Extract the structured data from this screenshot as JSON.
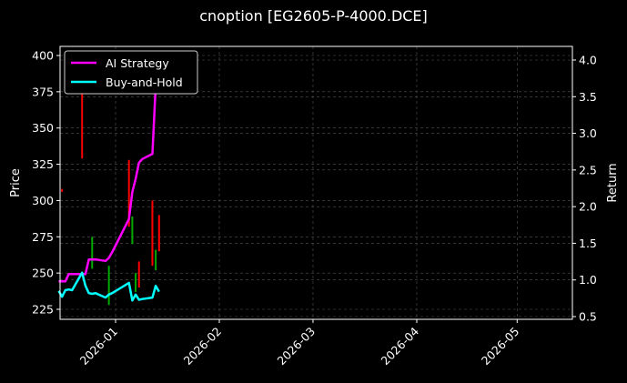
{
  "title": "cnoption [EG2605-P-4000.DCE]",
  "chart_data": {
    "type": "line",
    "title": "cnoption [EG2605-P-4000.DCE]",
    "xlabel": "",
    "ylabel": "Price",
    "y2label": "Return",
    "ylim": [
      218,
      405
    ],
    "y2lim": [
      0.45,
      4.15
    ],
    "yticks": [
      225,
      250,
      275,
      300,
      325,
      350,
      375,
      400
    ],
    "y2ticks": [
      "0.5",
      "1.0",
      "1.5",
      "2.0",
      "2.5",
      "3.0",
      "3.5",
      "4.0"
    ],
    "xticks": [
      "2026-01",
      "2026-02",
      "2026-03",
      "2026-04",
      "2026-05"
    ],
    "grid": true,
    "legend_position": "upper left",
    "legend": [
      "AI Strategy",
      "Buy-and-Hold"
    ],
    "series": [
      {
        "name": "AI Strategy",
        "color": "#ff00ff",
        "axis": "right",
        "x": [
          "2025-12-15",
          "2025-12-17",
          "2025-12-18",
          "2025-12-19",
          "2025-12-22",
          "2025-12-23",
          "2025-12-24",
          "2025-12-25",
          "2025-12-26",
          "2025-12-29",
          "2025-12-30",
          "2025-12-31",
          "2026-01-05",
          "2026-01-06",
          "2026-01-07",
          "2026-01-08",
          "2026-01-09",
          "2026-01-12",
          "2026-01-13",
          "2026-01-14"
        ],
        "values": [
          0.98,
          0.98,
          1.08,
          1.08,
          1.08,
          1.08,
          1.28,
          1.28,
          1.28,
          1.26,
          1.3,
          1.38,
          1.83,
          2.2,
          2.38,
          2.6,
          2.65,
          2.72,
          3.65,
          4.1
        ]
      },
      {
        "name": "Buy-and-Hold",
        "color": "#00ffff",
        "axis": "right",
        "x": [
          "2025-12-15",
          "2025-12-16",
          "2025-12-17",
          "2025-12-18",
          "2025-12-19",
          "2025-12-22",
          "2025-12-23",
          "2025-12-24",
          "2025-12-25",
          "2025-12-26",
          "2025-12-29",
          "2025-12-30",
          "2025-12-31",
          "2026-01-05",
          "2026-01-06",
          "2026-01-07",
          "2026-01-08",
          "2026-01-09",
          "2026-01-12",
          "2026-01-13",
          "2026-01-14"
        ],
        "values": [
          0.85,
          0.77,
          0.86,
          0.87,
          0.86,
          1.1,
          0.92,
          0.82,
          0.81,
          0.82,
          0.76,
          0.8,
          0.82,
          0.96,
          0.72,
          0.8,
          0.73,
          0.74,
          0.76,
          0.92,
          0.84
        ]
      }
    ],
    "candles": [
      {
        "x": "2025-12-16",
        "low": 306,
        "high": 308,
        "color": "#ff0000"
      },
      {
        "x": "2025-12-22",
        "low": 329,
        "high": 395,
        "color": "#ff0000"
      },
      {
        "x": "2025-12-25",
        "low": 253,
        "high": 275,
        "color": "#00aa00"
      },
      {
        "x": "2025-12-30",
        "low": 228,
        "high": 255,
        "color": "#00aa00"
      },
      {
        "x": "2026-01-05",
        "low": 282,
        "high": 328,
        "color": "#ff0000"
      },
      {
        "x": "2026-01-06",
        "low": 270,
        "high": 289,
        "color": "#00aa00"
      },
      {
        "x": "2026-01-07",
        "low": 237,
        "high": 250,
        "color": "#00aa00"
      },
      {
        "x": "2026-01-08",
        "low": 240,
        "high": 258,
        "color": "#ff0000"
      },
      {
        "x": "2026-01-12",
        "low": 255,
        "high": 300,
        "color": "#ff0000"
      },
      {
        "x": "2026-01-13",
        "low": 252,
        "high": 266,
        "color": "#00aa00"
      },
      {
        "x": "2026-01-14",
        "low": 265,
        "high": 290,
        "color": "#ff0000"
      }
    ]
  }
}
